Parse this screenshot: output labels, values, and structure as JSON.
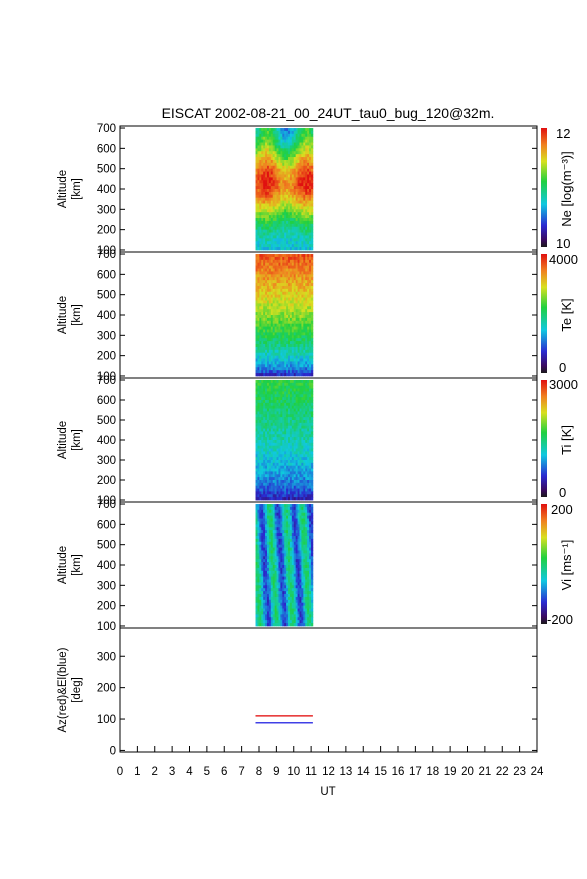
{
  "title": "EISCAT 2002-08-21_00_24UT_tau0_bug_120@32m.",
  "xaxis": {
    "label": "UT",
    "range": [
      0,
      24
    ],
    "ticks": [
      "0",
      "1",
      "2",
      "3",
      "4",
      "5",
      "6",
      "7",
      "8",
      "9",
      "10",
      "11",
      "12",
      "13",
      "14",
      "15",
      "16",
      "17",
      "18",
      "19",
      "20",
      "21",
      "22",
      "23",
      "24"
    ]
  },
  "data_window_ut": [
    7.8,
    11.1
  ],
  "chart_data": [
    {
      "type": "heatmap",
      "parameter": "Ne",
      "ylabel_line1": "Altitude",
      "ylabel_line2": "[km]",
      "ylim": [
        90,
        710
      ],
      "yticks": [
        "100",
        "200",
        "300",
        "400",
        "500",
        "600",
        "700"
      ],
      "colorbar_label": "Ne [log(m⁻³)]",
      "colorbar_range": [
        10,
        12
      ],
      "colorbar_ticks": [
        "10",
        "12"
      ],
      "data_altitude_km": [
        100,
        700
      ]
    },
    {
      "type": "heatmap",
      "parameter": "Te",
      "ylabel_line1": "Altitude",
      "ylabel_line2": "[km]",
      "ylim": [
        90,
        710
      ],
      "yticks": [
        "100",
        "200",
        "300",
        "400",
        "500",
        "600",
        "700"
      ],
      "colorbar_label": "Te [K]",
      "colorbar_range": [
        0,
        4000
      ],
      "colorbar_ticks": [
        "0",
        "4000"
      ],
      "data_altitude_km": [
        100,
        700
      ]
    },
    {
      "type": "heatmap",
      "parameter": "Ti",
      "ylabel_line1": "Altitude",
      "ylabel_line2": "[km]",
      "ylim": [
        90,
        710
      ],
      "yticks": [
        "100",
        "200",
        "300",
        "400",
        "500",
        "600",
        "700"
      ],
      "colorbar_label": "Ti [K]",
      "colorbar_range": [
        0,
        3000
      ],
      "colorbar_ticks": [
        "0",
        "3000"
      ],
      "data_altitude_km": [
        100,
        700
      ]
    },
    {
      "type": "heatmap",
      "parameter": "Vi",
      "ylabel_line1": "Altitude",
      "ylabel_line2": "[km]",
      "ylim": [
        90,
        710
      ],
      "yticks": [
        "100",
        "200",
        "300",
        "400",
        "500",
        "600",
        "700"
      ],
      "colorbar_label": "Vi [ms⁻¹]",
      "colorbar_range": [
        -200,
        200
      ],
      "colorbar_ticks": [
        "-200",
        "200"
      ],
      "data_altitude_km": [
        100,
        700
      ]
    },
    {
      "type": "line",
      "ylabel_line1": "Az(red)&El(blue)",
      "ylabel_line2": "[deg]",
      "ylim": [
        -5,
        390
      ],
      "yticks": [
        "0",
        "100",
        "200",
        "300"
      ],
      "series": [
        {
          "name": "Az",
          "color": "#e00000",
          "x": [
            7.8,
            11.1
          ],
          "y": [
            110,
            110
          ]
        },
        {
          "name": "El",
          "color": "#0000dd",
          "x": [
            7.8,
            11.1
          ],
          "y": [
            88,
            88
          ]
        }
      ]
    }
  ]
}
